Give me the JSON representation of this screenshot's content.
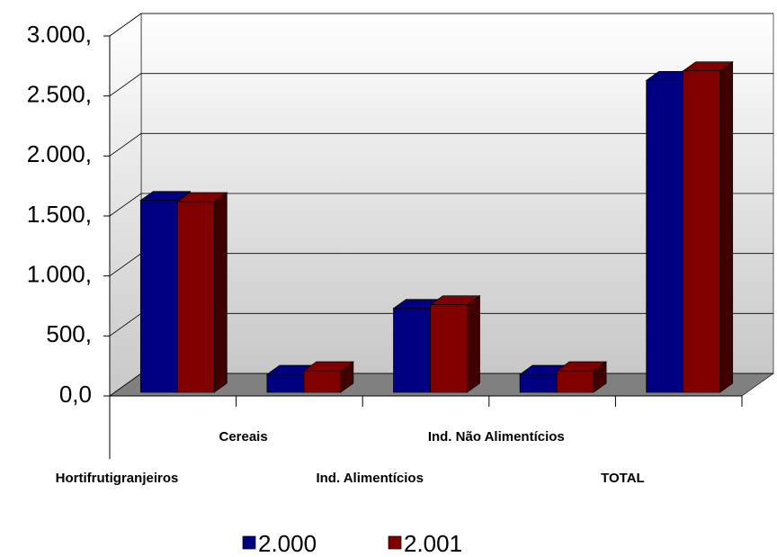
{
  "chart_data": {
    "type": "bar3d",
    "categories": [
      "Hortifrutigranjeiros",
      "Cereais",
      "Ind. Alimentícios",
      "Ind. Não Alimentícios",
      "TOTAL"
    ],
    "series": [
      {
        "name": "2.000",
        "color": "#000080",
        "values": [
          1600,
          150,
          700,
          150,
          2600
        ]
      },
      {
        "name": "2.001",
        "color": "#800000",
        "values": [
          1590,
          180,
          730,
          180,
          2680
        ]
      }
    ],
    "ylim": [
      0,
      3000
    ],
    "yticks": [
      {
        "value": 0,
        "label": "0,0"
      },
      {
        "value": 500,
        "label": "500,"
      },
      {
        "value": 1000,
        "label": "1.000,"
      },
      {
        "value": 1500,
        "label": "1.500,"
      },
      {
        "value": 2000,
        "label": "2.000,"
      },
      {
        "value": 2500,
        "label": "2.500,"
      },
      {
        "value": 3000,
        "label": "3.000,"
      }
    ],
    "grid": true
  }
}
